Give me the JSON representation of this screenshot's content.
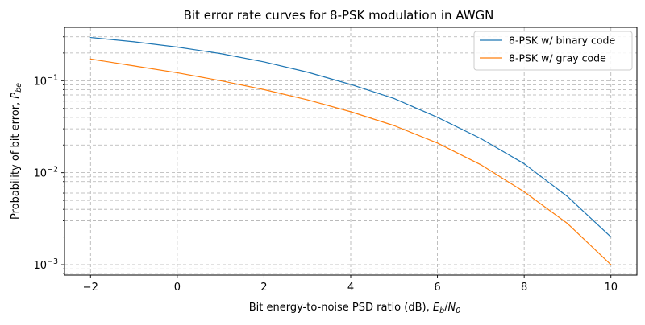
{
  "chart_data": {
    "type": "line",
    "title": "Bit error rate curves for 8-PSK modulation in AWGN",
    "xlabel_text": "Bit energy-to-noise PSD ratio (dB), ",
    "xlabel_math": "E_b/N_0",
    "ylabel_text": "Probability of bit error, ",
    "ylabel_math": "P_be",
    "xlim": [
      -2.6,
      10.6
    ],
    "ylim": [
      0.00077,
      0.38
    ],
    "yscale": "log",
    "grid": true,
    "legend_location": "top-right",
    "x_ticks": [
      -2,
      0,
      2,
      4,
      6,
      8,
      10
    ],
    "x_tick_labels": [
      "−2",
      "0",
      "2",
      "4",
      "6",
      "8",
      "10"
    ],
    "y_major_ticks": [
      0.001,
      0.01,
      0.1
    ],
    "y_tick_labels": [
      {
        "base": "10",
        "exp": "−3"
      },
      {
        "base": "10",
        "exp": "−2"
      },
      {
        "base": "10",
        "exp": "−1"
      }
    ],
    "x": [
      -2,
      -1,
      0,
      1,
      2,
      3,
      4,
      5,
      6,
      7,
      8,
      9,
      10
    ],
    "series": [
      {
        "name": "8-PSK w/ binary code",
        "color": "#1f77b4",
        "values": [
          0.295,
          0.265,
          0.232,
          0.197,
          0.16,
          0.124,
          0.091,
          0.064,
          0.04,
          0.0235,
          0.0125,
          0.0055,
          0.002
        ]
      },
      {
        "name": "8-PSK w/ gray code",
        "color": "#ff7f0e",
        "values": [
          0.172,
          0.145,
          0.122,
          0.1,
          0.08,
          0.062,
          0.046,
          0.0325,
          0.021,
          0.0122,
          0.0062,
          0.0028,
          0.001
        ]
      }
    ]
  }
}
